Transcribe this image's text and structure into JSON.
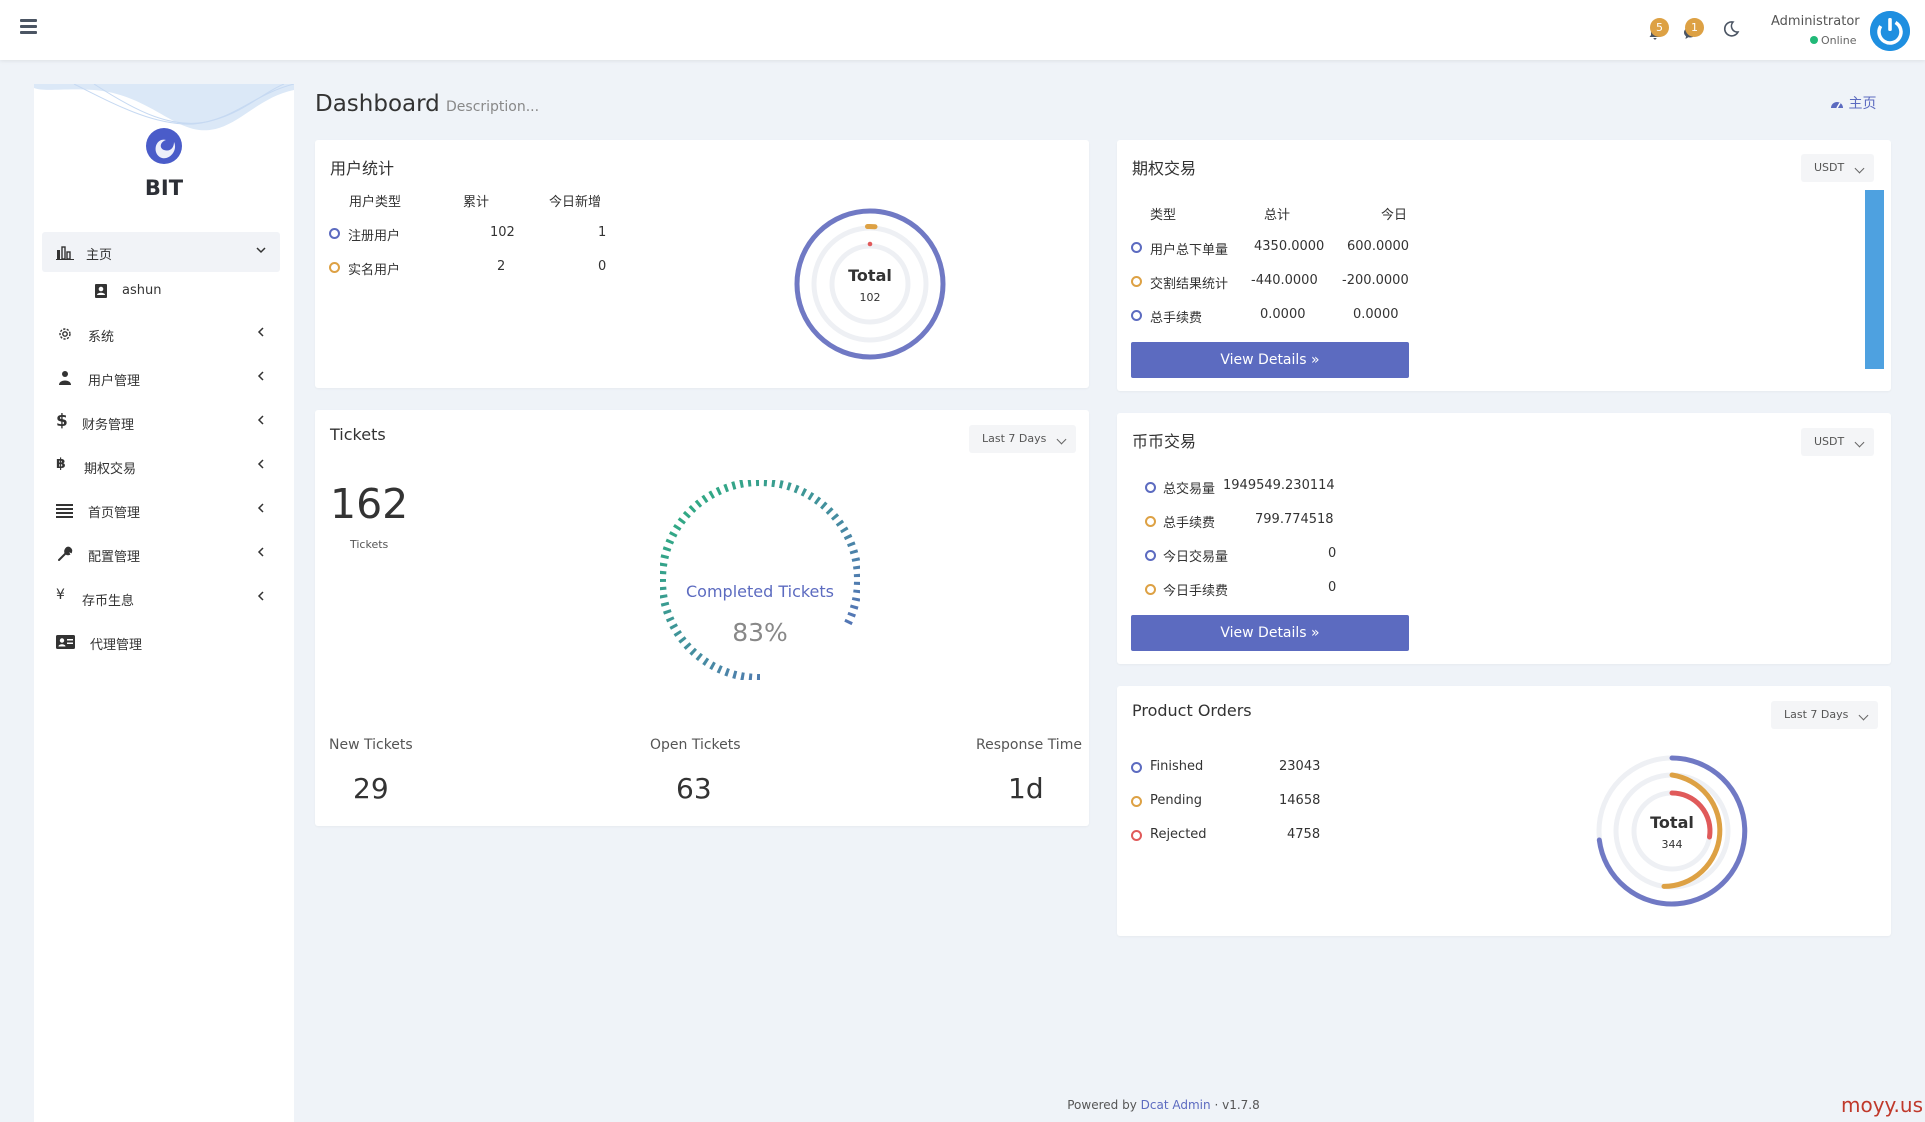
{
  "topbar": {
    "notify_count_1": "5",
    "notify_count_2": "1",
    "user_name": "Administrator",
    "user_status": "Online"
  },
  "sidebar": {
    "brand": "BIT",
    "items": [
      {
        "label": "主页",
        "icon": "bar-chart-icon"
      },
      {
        "label": "ashun",
        "icon": "user-badge-icon"
      },
      {
        "label": "系统",
        "icon": "gear-icon"
      },
      {
        "label": "用户管理",
        "icon": "users-icon"
      },
      {
        "label": "财务管理",
        "icon": "dollar-icon"
      },
      {
        "label": "期权交易",
        "icon": "bitcoin-icon"
      },
      {
        "label": "首页管理",
        "icon": "list-icon"
      },
      {
        "label": "配置管理",
        "icon": "wrench-icon"
      },
      {
        "label": "存币生息",
        "icon": "yen-icon"
      },
      {
        "label": "代理管理",
        "icon": "id-card-icon"
      }
    ]
  },
  "header": {
    "title": "Dashboard",
    "description": "Description...",
    "breadcrumb": "主页"
  },
  "user_stats": {
    "title": "用户统计",
    "headers": [
      "用户类型",
      "累计",
      "今日新增"
    ],
    "rows": [
      {
        "type": "注册用户",
        "total": "102",
        "today": "1"
      },
      {
        "type": "实名用户",
        "total": "2",
        "today": "0"
      }
    ],
    "donut_label": "Total",
    "donut_value": "102"
  },
  "options_trading": {
    "title": "期权交易",
    "currency": "USDT",
    "headers": [
      "类型",
      "总计",
      "今日"
    ],
    "rows": [
      {
        "type": "用户总下单量",
        "total": "4350.0000",
        "today": "600.0000"
      },
      {
        "type": "交割结果统计",
        "total": "-440.0000",
        "today": "-200.0000"
      },
      {
        "type": "总手续费",
        "total": "0.0000",
        "today": "0.0000"
      }
    ],
    "button": "View Details"
  },
  "tickets": {
    "title": "Tickets",
    "range": "Last 7 Days",
    "total": "162",
    "total_label": "Tickets",
    "gauge_label": "Completed Tickets",
    "gauge_value": "83%",
    "gauge_percent": 83,
    "stats": [
      {
        "label": "New Tickets",
        "value": "29"
      },
      {
        "label": "Open Tickets",
        "value": "63"
      },
      {
        "label": "Response Time",
        "value": "1d"
      }
    ]
  },
  "coin_trading": {
    "title": "币币交易",
    "currency": "USDT",
    "rows": [
      {
        "label": "总交易量",
        "value": "1949549.230114"
      },
      {
        "label": "总手续费",
        "value": "799.774518"
      },
      {
        "label": "今日交易量",
        "value": "0"
      },
      {
        "label": "今日手续费",
        "value": "0"
      }
    ],
    "button": "View Details"
  },
  "product_orders": {
    "title": "Product Orders",
    "range": "Last 7 Days",
    "rows": [
      {
        "label": "Finished",
        "value": "23043"
      },
      {
        "label": "Pending",
        "value": "14658"
      },
      {
        "label": "Rejected",
        "value": "4758"
      }
    ],
    "donut_label": "Total",
    "donut_value": "344"
  },
  "footer": {
    "powered_by": "Powered by",
    "link": "Dcat Admin",
    "sep": "·",
    "version": "v1.7.8"
  },
  "watermark": "moyy.us",
  "colors": {
    "accent": "#5c6bc0",
    "orange": "#dda144",
    "red": "#e05a5a",
    "green": "#21b978",
    "blue_bar": "#4ea1e0"
  }
}
